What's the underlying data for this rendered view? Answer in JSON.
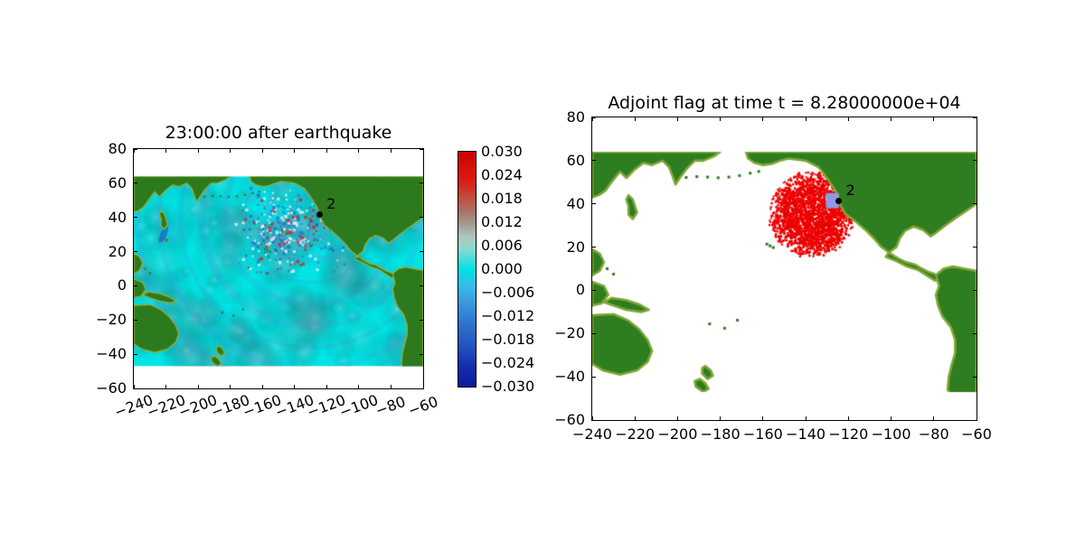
{
  "figure": {
    "background": "#ffffff"
  },
  "chart_data": [
    {
      "type": "heatmap",
      "title": "23:00:00 after earthquake",
      "xlabel": "",
      "ylabel": "",
      "xlim": [
        -240,
        -60
      ],
      "ylim": [
        -60,
        80
      ],
      "xticks": [
        -240,
        -220,
        -200,
        -180,
        -160,
        -140,
        -120,
        -100,
        -80,
        -60
      ],
      "xtick_labels": [
        "−240",
        "−220",
        "−200",
        "−180",
        "−160",
        "−140",
        "−120",
        "−100",
        "−80",
        "−60"
      ],
      "xtick_rotation_deg": 20,
      "yticks": [
        80,
        60,
        40,
        20,
        0,
        -20,
        -40,
        -60
      ],
      "ytick_labels": [
        "80",
        "60",
        "40",
        "20",
        "0",
        "−20",
        "−40",
        "−60"
      ],
      "grid": false,
      "domain_lat": [
        -47,
        64
      ],
      "ocean_color": "#00e4e4",
      "land_color": "#2d7a1e",
      "land_edge_color": "#96ad3a",
      "wave_source": {
        "lon": -130,
        "lat": 40
      },
      "marker": {
        "lon": -124.6,
        "lat": 41.8,
        "label": "2",
        "color": "#000000"
      },
      "colorbar": {
        "vmin": -0.03,
        "vmax": 0.03,
        "tick_labels": [
          "0.030",
          "0.024",
          "0.018",
          "0.012",
          "0.006",
          "0.000",
          "−0.006",
          "−0.012",
          "−0.018",
          "−0.024",
          "−0.030"
        ],
        "gradient": [
          [
            "0%",
            "#cf0000"
          ],
          [
            "12%",
            "#dc1a10"
          ],
          [
            "19%",
            "#c24a3a"
          ],
          [
            "26%",
            "#a5786c"
          ],
          [
            "31%",
            "#a29d96"
          ],
          [
            "36%",
            "#b0c4bd"
          ],
          [
            "41%",
            "#8fd8d0"
          ],
          [
            "47%",
            "#33e0dc"
          ],
          [
            "50%",
            "#00e2e2"
          ],
          [
            "57%",
            "#36bce9"
          ],
          [
            "65%",
            "#3b96dc"
          ],
          [
            "73%",
            "#2f74cd"
          ],
          [
            "82%",
            "#2456c2"
          ],
          [
            "91%",
            "#162fae"
          ],
          [
            "100%",
            "#071b9b"
          ]
        ]
      }
    },
    {
      "type": "heatmap",
      "title": "Adjoint flag at time t = 8.28000000e+04",
      "xlabel": "",
      "ylabel": "",
      "xlim": [
        -240,
        -60
      ],
      "ylim": [
        -60,
        80
      ],
      "xticks": [
        -240,
        -220,
        -200,
        -180,
        -160,
        -140,
        -120,
        -100,
        -80,
        -60
      ],
      "xtick_labels": [
        "−240",
        "−220",
        "−200",
        "−180",
        "−160",
        "−140",
        "−120",
        "−100",
        "−80",
        "−60"
      ],
      "xtick_rotation_deg": 0,
      "yticks": [
        80,
        60,
        40,
        20,
        0,
        -20,
        -40,
        -60
      ],
      "ytick_labels": [
        "80",
        "60",
        "40",
        "20",
        "0",
        "−20",
        "−40",
        "−60"
      ],
      "grid": false,
      "domain_lat": [
        -47,
        64
      ],
      "ocean_color": "#ffffff",
      "land_color": "#2e7d20",
      "land_edge_color": "#7ea734",
      "adjoint_region": {
        "center_lon": -137.5,
        "center_lat": 35.5,
        "radius_lon_deg": 17,
        "radius_lat_deg": 17,
        "color": "#f40000"
      },
      "gauge_box": {
        "lon_min": -130.5,
        "lon_max": -124.5,
        "lat_min": 38,
        "lat_max": 45,
        "color": "#8e9ae8"
      },
      "marker": {
        "lon": -124.6,
        "lat": 41.5,
        "label": "2",
        "color": "#000000"
      }
    }
  ],
  "land_polygons": [
    {
      "name": "siberia-kamchatka",
      "pts": [
        [
          -240,
          64
        ],
        [
          -180,
          64
        ],
        [
          -183,
          62
        ],
        [
          -188,
          60
        ],
        [
          -192,
          60
        ],
        [
          -196,
          56
        ],
        [
          -199,
          52
        ],
        [
          -201,
          49
        ],
        [
          -202,
          52
        ],
        [
          -204,
          57
        ],
        [
          -207,
          60
        ],
        [
          -212,
          58
        ],
        [
          -216,
          59
        ],
        [
          -220,
          56
        ],
        [
          -224,
          52
        ],
        [
          -227,
          55
        ],
        [
          -231,
          50
        ],
        [
          -234,
          46
        ],
        [
          -237,
          44
        ],
        [
          -240,
          43
        ]
      ]
    },
    {
      "name": "japan",
      "pts": [
        [
          -223,
          44
        ],
        [
          -221,
          42
        ],
        [
          -220,
          39
        ],
        [
          -219,
          36
        ],
        [
          -221,
          33
        ],
        [
          -223,
          35
        ],
        [
          -223,
          39
        ],
        [
          -224,
          42
        ]
      ]
    },
    {
      "name": "alaska-north-america",
      "pts": [
        [
          -168,
          64
        ],
        [
          -167,
          61
        ],
        [
          -164,
          59
        ],
        [
          -160,
          58
        ],
        [
          -156,
          58.5
        ],
        [
          -152,
          60
        ],
        [
          -148,
          61
        ],
        [
          -144,
          60.5
        ],
        [
          -140,
          60
        ],
        [
          -137,
          58.5
        ],
        [
          -134,
          57
        ],
        [
          -132,
          54.5
        ],
        [
          -130,
          52
        ],
        [
          -128,
          49
        ],
        [
          -126,
          46
        ],
        [
          -124.5,
          42.5
        ],
        [
          -123.5,
          39
        ],
        [
          -121.5,
          35.5
        ],
        [
          -118,
          33
        ],
        [
          -114.5,
          30
        ],
        [
          -111,
          27
        ],
        [
          -108,
          24
        ],
        [
          -104.5,
          20
        ],
        [
          -101,
          17.5
        ],
        [
          -97.5,
          20
        ],
        [
          -96,
          24
        ],
        [
          -93.5,
          27.5
        ],
        [
          -89.5,
          29.5
        ],
        [
          -85,
          28
        ],
        [
          -81.5,
          25
        ],
        [
          -78.5,
          27
        ],
        [
          -74,
          30.5
        ],
        [
          -69,
          34
        ],
        [
          -63,
          38
        ],
        [
          -60,
          40
        ],
        [
          -60,
          64
        ]
      ]
    },
    {
      "name": "central-america",
      "pts": [
        [
          -101,
          17.5
        ],
        [
          -97,
          15
        ],
        [
          -93,
          13
        ],
        [
          -89,
          12
        ],
        [
          -85.5,
          10
        ],
        [
          -82.5,
          8.5
        ],
        [
          -79.5,
          7.5
        ],
        [
          -77,
          5.5
        ],
        [
          -79.5,
          4.5
        ],
        [
          -83.5,
          7
        ],
        [
          -87.5,
          9.5
        ],
        [
          -92.5,
          11
        ],
        [
          -97.5,
          13.5
        ],
        [
          -102.5,
          15.5
        ]
      ]
    },
    {
      "name": "south-america",
      "pts": [
        [
          -79,
          7
        ],
        [
          -75.5,
          10
        ],
        [
          -71,
          11
        ],
        [
          -65.5,
          10
        ],
        [
          -60,
          9
        ],
        [
          -60,
          -50
        ],
        [
          -65,
          -52
        ],
        [
          -71,
          -50
        ],
        [
          -73.5,
          -46
        ],
        [
          -73,
          -40
        ],
        [
          -71.5,
          -34
        ],
        [
          -70,
          -29
        ],
        [
          -70,
          -23
        ],
        [
          -72,
          -17
        ],
        [
          -76,
          -12
        ],
        [
          -78,
          -7
        ],
        [
          -79,
          -2
        ],
        [
          -77.5,
          2
        ]
      ]
    },
    {
      "name": "australia",
      "pts": [
        [
          -240,
          -11.5
        ],
        [
          -230,
          -11
        ],
        [
          -223,
          -14
        ],
        [
          -218,
          -18
        ],
        [
          -214,
          -23
        ],
        [
          -212,
          -28
        ],
        [
          -214,
          -33
        ],
        [
          -219,
          -37
        ],
        [
          -227,
          -39
        ],
        [
          -235,
          -37
        ],
        [
          -240,
          -34
        ]
      ]
    },
    {
      "name": "new-guinea",
      "pts": [
        [
          -231,
          -3.5
        ],
        [
          -224,
          -4.5
        ],
        [
          -218,
          -6.5
        ],
        [
          -213.5,
          -9
        ],
        [
          -217,
          -10
        ],
        [
          -224,
          -9
        ],
        [
          -230,
          -7
        ],
        [
          -234.5,
          -5.5
        ]
      ]
    },
    {
      "name": "new-zealand-north",
      "pts": [
        [
          -187,
          -35
        ],
        [
          -184.5,
          -37
        ],
        [
          -183.5,
          -39.5
        ],
        [
          -186,
          -41
        ],
        [
          -188.5,
          -38.5
        ],
        [
          -188.5,
          -36
        ]
      ]
    },
    {
      "name": "new-zealand-south",
      "pts": [
        [
          -189.5,
          -41
        ],
        [
          -187,
          -43
        ],
        [
          -185.5,
          -45.5
        ],
        [
          -188,
          -47
        ],
        [
          -191.5,
          -44.5
        ],
        [
          -192,
          -42
        ]
      ]
    },
    {
      "name": "philippines",
      "pts": [
        [
          -240,
          19
        ],
        [
          -236.5,
          17
        ],
        [
          -234.5,
          13
        ],
        [
          -236.5,
          9
        ],
        [
          -240,
          7
        ]
      ]
    },
    {
      "name": "borneo",
      "pts": [
        [
          -240,
          4
        ],
        [
          -234.5,
          2
        ],
        [
          -232.5,
          -2
        ],
        [
          -235.5,
          -6
        ],
        [
          -240,
          -7
        ]
      ]
    }
  ],
  "islands": [
    [
      -196,
      52.2
    ],
    [
      -191,
      52.6
    ],
    [
      -186,
      52.4
    ],
    [
      -181,
      52.1
    ],
    [
      -176,
      52.4
    ],
    [
      -171,
      53.1
    ],
    [
      -166,
      54.2
    ],
    [
      -162,
      55
    ],
    [
      -155.2,
      19.8
    ],
    [
      -156.7,
      20.6
    ],
    [
      -158.2,
      21.4
    ],
    [
      -178,
      -17.5
    ],
    [
      -172,
      -13.8
    ],
    [
      -185,
      -15.5
    ],
    [
      -230,
      7.5
    ],
    [
      -233,
      10
    ],
    [
      -236,
      14
    ]
  ]
}
